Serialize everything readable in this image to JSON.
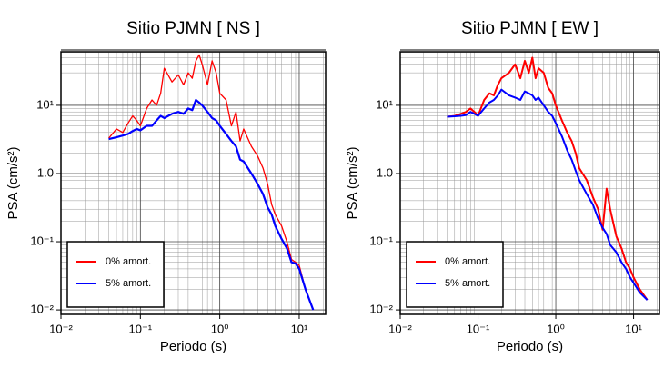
{
  "chart_data": [
    {
      "type": "line",
      "title": "Sitio PJMN [ NS ]",
      "xlabel": "Periodo (s)",
      "ylabel": "PSA (cm/s²)",
      "xscale": "log",
      "yscale": "log",
      "grid": true,
      "legend": "lower left",
      "xlim": [
        0.01,
        21.5
      ],
      "ylim": [
        0.0086,
        61
      ],
      "xticks": [
        {
          "value": 0.01,
          "label": "10⁻²"
        },
        {
          "value": 0.1,
          "label": "10⁻¹"
        },
        {
          "value": 1,
          "label": "10⁰"
        },
        {
          "value": 10,
          "label": "10¹"
        }
      ],
      "yticks": [
        {
          "value": 0.01,
          "label": "10⁻²"
        },
        {
          "value": 0.1,
          "label": "10⁻¹"
        },
        {
          "value": 1,
          "label": "1.0"
        },
        {
          "value": 10,
          "label": "10¹"
        }
      ],
      "x": [
        0.04,
        0.05,
        0.06,
        0.07,
        0.08,
        0.09,
        0.1,
        0.12,
        0.14,
        0.16,
        0.18,
        0.2,
        0.25,
        0.3,
        0.35,
        0.4,
        0.45,
        0.5,
        0.55,
        0.6,
        0.7,
        0.8,
        0.9,
        1.0,
        1.2,
        1.4,
        1.6,
        1.8,
        2.0,
        2.5,
        3,
        3.5,
        4,
        4.5,
        5,
        6,
        7,
        8,
        9,
        10,
        12,
        15
      ],
      "series": [
        {
          "name": "0% amort.",
          "color": "#ff0000",
          "width": 1.3,
          "values": [
            3.3,
            4.5,
            4,
            5.5,
            7,
            6,
            5,
            9,
            12,
            10,
            15,
            35,
            22,
            28,
            20,
            30,
            25,
            45,
            55,
            40,
            20,
            45,
            30,
            15,
            12,
            5,
            8,
            3,
            4.5,
            2.5,
            1.8,
            1.2,
            0.7,
            0.35,
            0.25,
            0.17,
            0.1,
            0.055,
            0.05,
            0.045,
            0.02,
            0.01
          ]
        },
        {
          "name": "5% amort.",
          "color": "#0000ff",
          "width": 2.2,
          "values": [
            3.2,
            3.4,
            3.6,
            3.8,
            4.2,
            4.5,
            4.3,
            5,
            5,
            6,
            7,
            6.5,
            7.5,
            8,
            7.5,
            9,
            8.5,
            12,
            11,
            10,
            8,
            6.5,
            6,
            5,
            3.8,
            3,
            2.5,
            1.6,
            1.5,
            1.0,
            0.7,
            0.5,
            0.32,
            0.25,
            0.17,
            0.11,
            0.08,
            0.05,
            0.048,
            0.04,
            0.02,
            0.01
          ]
        }
      ]
    },
    {
      "type": "line",
      "title": "Sitio PJMN [ EW ]",
      "xlabel": "Periodo (s)",
      "ylabel": "PSA (cm/s²)",
      "xscale": "log",
      "yscale": "log",
      "grid": true,
      "legend": "lower left",
      "xlim": [
        0.01,
        21.5
      ],
      "ylim": [
        0.0086,
        61
      ],
      "xticks": [
        {
          "value": 0.01,
          "label": "10⁻²"
        },
        {
          "value": 0.1,
          "label": "10⁻¹"
        },
        {
          "value": 1,
          "label": "10⁰"
        },
        {
          "value": 10,
          "label": "10¹"
        }
      ],
      "yticks": [
        {
          "value": 0.01,
          "label": "10⁻²"
        },
        {
          "value": 0.1,
          "label": "10⁻¹"
        },
        {
          "value": 1,
          "label": "1.0"
        },
        {
          "value": 10,
          "label": "10¹"
        }
      ],
      "x": [
        0.04,
        0.05,
        0.06,
        0.07,
        0.08,
        0.09,
        0.1,
        0.12,
        0.14,
        0.16,
        0.18,
        0.2,
        0.25,
        0.3,
        0.35,
        0.4,
        0.45,
        0.5,
        0.55,
        0.6,
        0.7,
        0.8,
        0.9,
        1.0,
        1.2,
        1.4,
        1.6,
        1.8,
        2.0,
        2.5,
        3,
        3.5,
        4,
        4.5,
        5,
        6,
        7,
        8,
        9,
        10,
        12,
        15
      ],
      "series": [
        {
          "name": "0% amort.",
          "color": "#ff0000",
          "width": 2,
          "values": [
            6.8,
            7,
            7.5,
            8,
            9,
            8,
            7,
            12,
            15,
            14,
            20,
            25,
            30,
            40,
            25,
            45,
            30,
            50,
            25,
            35,
            30,
            18,
            15,
            10,
            6,
            4,
            3,
            2,
            1.2,
            0.8,
            0.45,
            0.3,
            0.15,
            0.6,
            0.3,
            0.12,
            0.08,
            0.05,
            0.04,
            0.03,
            0.02,
            0.014
          ]
        },
        {
          "name": "5% amort.",
          "color": "#0000ff",
          "width": 2,
          "values": [
            6.8,
            6.9,
            7,
            7.2,
            8,
            7.5,
            7,
            9,
            11,
            12,
            14,
            17,
            14,
            13,
            12,
            16,
            15,
            14,
            12,
            13,
            10,
            8,
            7,
            5.5,
            3.5,
            2.2,
            1.6,
            1.1,
            0.8,
            0.5,
            0.35,
            0.22,
            0.16,
            0.13,
            0.09,
            0.07,
            0.05,
            0.04,
            0.03,
            0.025,
            0.018,
            0.014
          ]
        }
      ]
    }
  ]
}
